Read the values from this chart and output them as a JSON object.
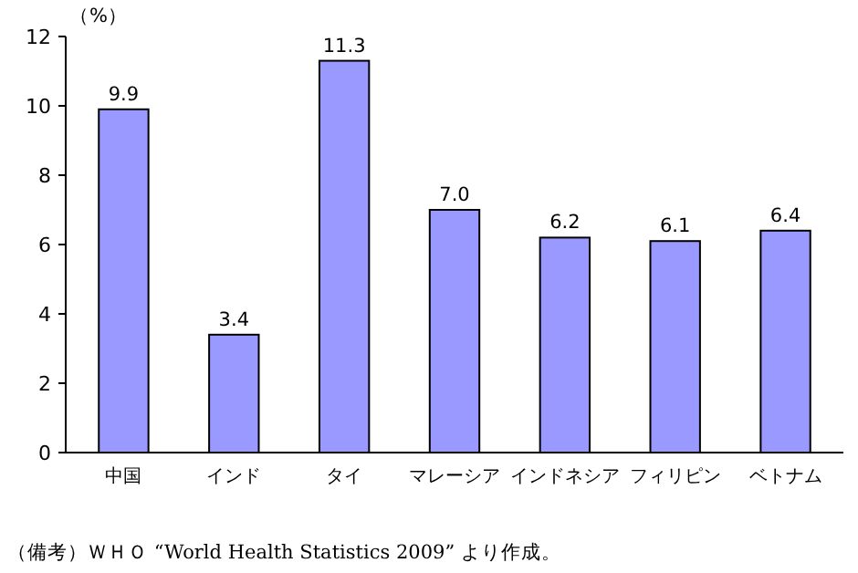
{
  "chart_data": {
    "type": "bar",
    "ylabel": "（%）",
    "categories": [
      "中国",
      "インド",
      "タイ",
      "マレーシア",
      "インドネシア",
      "フィリピン",
      "ベトナム"
    ],
    "values": [
      9.9,
      3.4,
      11.3,
      7.0,
      6.2,
      6.1,
      6.4
    ],
    "value_labels": [
      "9.9",
      "3.4",
      "11.3",
      "7.0",
      "6.2",
      "6.1",
      "6.4"
    ],
    "color": "#9999ff",
    "ylim": [
      0,
      12
    ],
    "yticks": [
      0,
      2,
      4,
      6,
      8,
      10,
      12
    ],
    "annotations": [
      "（備考）ＷＨＯ “World Health Statistics 2009” より作成。"
    ]
  }
}
